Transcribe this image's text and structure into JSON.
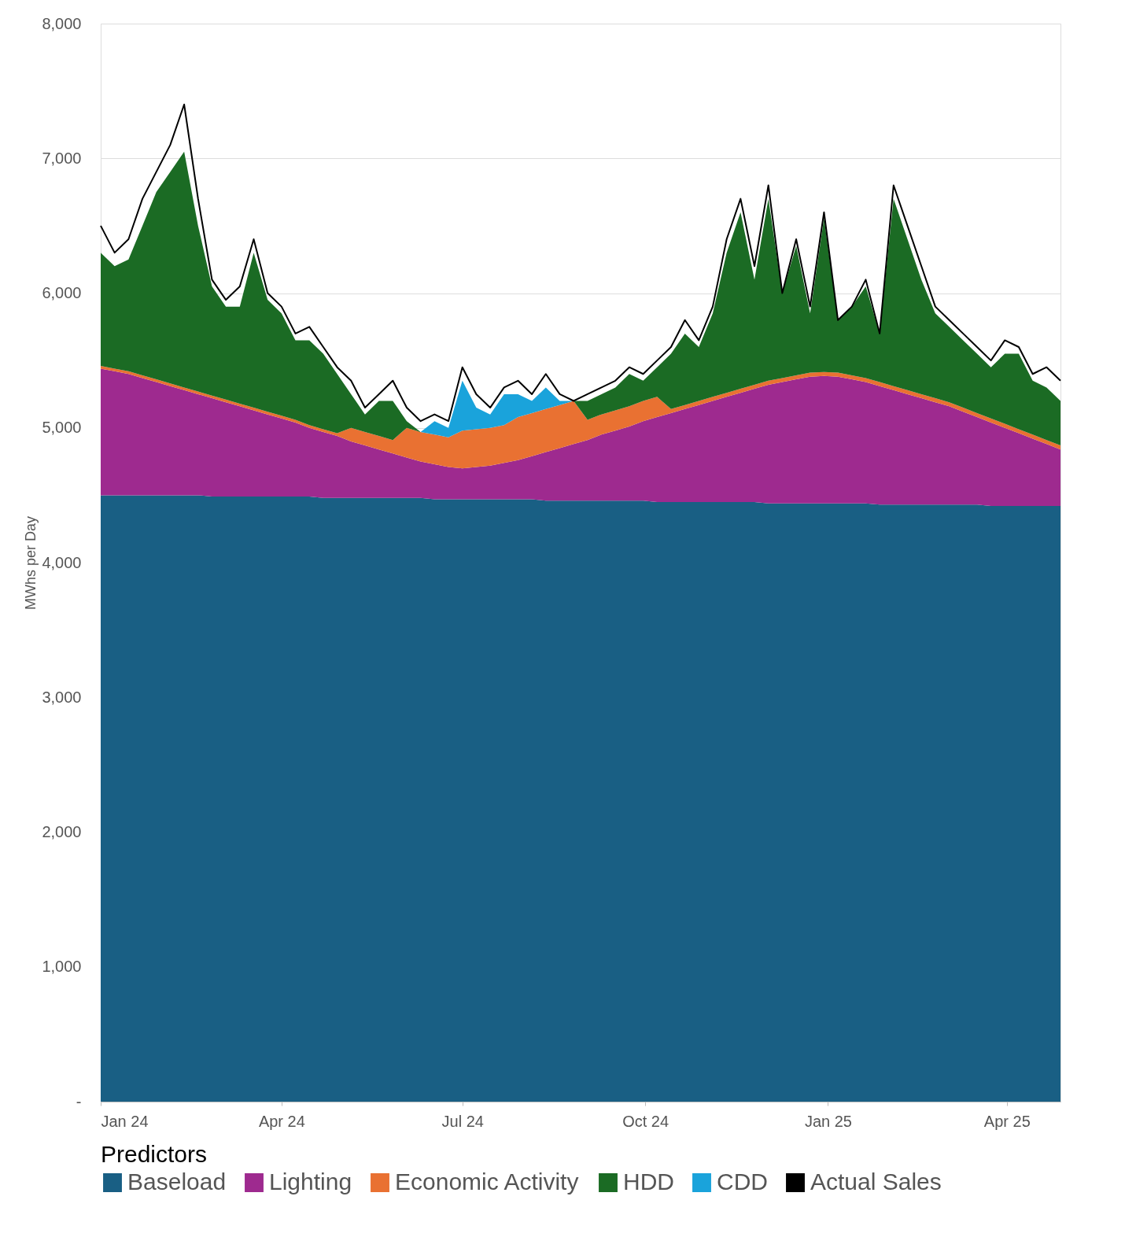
{
  "chart_data": {
    "type": "area",
    "stacked": true,
    "ylabel": "MWhs per Day",
    "legend_title": "Predictors",
    "legend": "bottom",
    "grid": "y",
    "x": [
      "2024-01-01",
      "2024-01-08",
      "2024-01-15",
      "2024-01-22",
      "2024-01-29",
      "2024-02-05",
      "2024-02-12",
      "2024-02-19",
      "2024-02-26",
      "2024-03-04",
      "2024-03-11",
      "2024-03-18",
      "2024-03-25",
      "2024-04-01",
      "2024-04-08",
      "2024-04-15",
      "2024-04-22",
      "2024-04-29",
      "2024-05-06",
      "2024-05-13",
      "2024-05-20",
      "2024-05-27",
      "2024-06-03",
      "2024-06-10",
      "2024-06-17",
      "2024-06-24",
      "2024-07-01",
      "2024-07-08",
      "2024-07-15",
      "2024-07-22",
      "2024-07-29",
      "2024-08-05",
      "2024-08-12",
      "2024-08-19",
      "2024-08-26",
      "2024-09-02",
      "2024-09-09",
      "2024-09-16",
      "2024-09-23",
      "2024-09-30",
      "2024-10-07",
      "2024-10-14",
      "2024-10-21",
      "2024-10-28",
      "2024-11-04",
      "2024-11-11",
      "2024-11-18",
      "2024-11-25",
      "2024-12-02",
      "2024-12-09",
      "2024-12-16",
      "2024-12-23",
      "2024-12-30",
      "2025-01-06",
      "2025-01-13",
      "2025-01-20",
      "2025-01-27",
      "2025-02-03",
      "2025-02-10",
      "2025-02-17",
      "2025-02-24",
      "2025-03-03",
      "2025-03-10",
      "2025-03-17",
      "2025-03-24",
      "2025-03-31",
      "2025-04-07",
      "2025-04-14",
      "2025-04-21",
      "2025-04-28"
    ],
    "xlim": [
      "2024-01-01",
      "2025-04-28"
    ],
    "xticks": [
      {
        "value": "2024-01-01",
        "label": "Jan 24"
      },
      {
        "value": "2024-04-01",
        "label": "Apr 24"
      },
      {
        "value": "2024-07-01",
        "label": "Jul 24"
      },
      {
        "value": "2024-10-01",
        "label": "Oct 24"
      },
      {
        "value": "2025-01-01",
        "label": "Jan 25"
      },
      {
        "value": "2025-04-01",
        "label": "Apr 25"
      }
    ],
    "ylim": [
      0,
      8000
    ],
    "yticks": [
      {
        "value": 0,
        "label": "-"
      },
      {
        "value": 1000,
        "label": "1,000"
      },
      {
        "value": 2000,
        "label": "2,000"
      },
      {
        "value": 3000,
        "label": "3,000"
      },
      {
        "value": 4000,
        "label": "4,000"
      },
      {
        "value": 5000,
        "label": "5,000"
      },
      {
        "value": 6000,
        "label": "6,000"
      },
      {
        "value": 7000,
        "label": "7,000"
      },
      {
        "value": 8000,
        "label": "8,000"
      }
    ],
    "series": [
      {
        "name": "Baseload",
        "color": "#195f84",
        "values": [
          4500,
          4500,
          4500,
          4500,
          4500,
          4500,
          4500,
          4500,
          4490,
          4490,
          4490,
          4490,
          4490,
          4490,
          4490,
          4490,
          4480,
          4480,
          4480,
          4480,
          4480,
          4480,
          4480,
          4480,
          4470,
          4470,
          4470,
          4470,
          4470,
          4470,
          4470,
          4470,
          4460,
          4460,
          4460,
          4460,
          4460,
          4460,
          4460,
          4460,
          4450,
          4450,
          4450,
          4450,
          4450,
          4450,
          4450,
          4450,
          4440,
          4440,
          4440,
          4440,
          4440,
          4440,
          4440,
          4440,
          4430,
          4430,
          4430,
          4430,
          4430,
          4430,
          4430,
          4430,
          4420,
          4420,
          4420,
          4420,
          4420,
          4420
        ]
      },
      {
        "name": "Lighting",
        "color": "#9e2a8f",
        "values": [
          940,
          920,
          900,
          870,
          840,
          810,
          780,
          750,
          730,
          700,
          670,
          640,
          610,
          580,
          550,
          510,
          490,
          460,
          420,
          390,
          360,
          330,
          300,
          270,
          260,
          240,
          230,
          240,
          250,
          270,
          290,
          320,
          360,
          390,
          420,
          450,
          490,
          520,
          550,
          590,
          630,
          660,
          690,
          720,
          750,
          780,
          810,
          840,
          880,
          900,
          920,
          940,
          945,
          940,
          920,
          900,
          880,
          850,
          820,
          790,
          760,
          730,
          690,
          650,
          620,
          580,
          540,
          500,
          460,
          420
        ]
      },
      {
        "name": "Economic Activity",
        "color": "#e97132",
        "values": [
          20,
          20,
          20,
          20,
          20,
          20,
          20,
          20,
          20,
          20,
          20,
          20,
          20,
          20,
          20,
          20,
          20,
          20,
          100,
          100,
          100,
          100,
          220,
          220,
          220,
          220,
          280,
          280,
          280,
          280,
          320,
          320,
          320,
          320,
          320,
          150,
          150,
          150,
          150,
          150,
          150,
          30,
          30,
          30,
          30,
          30,
          30,
          30,
          30,
          30,
          30,
          30,
          30,
          30,
          30,
          30,
          30,
          30,
          30,
          30,
          30,
          30,
          30,
          30,
          30,
          30,
          30,
          30,
          30,
          30
        ]
      },
      {
        "name": "HDD",
        "color": "#1b6b24",
        "values": [
          840,
          760,
          830,
          1110,
          1390,
          1570,
          1750,
          1230,
          810,
          690,
          720,
          1150,
          830,
          760,
          590,
          630,
          560,
          440,
          250,
          130,
          260,
          290,
          50,
          0,
          0,
          0,
          0,
          0,
          0,
          0,
          0,
          0,
          0,
          0,
          0,
          140,
          150,
          170,
          240,
          150,
          220,
          410,
          530,
          400,
          620,
          1040,
          1310,
          780,
          1350,
          630,
          960,
          440,
          1140,
          390,
          510,
          680,
          360,
          1390,
          1120,
          850,
          630,
          560,
          500,
          440,
          380,
          520,
          560,
          400,
          390,
          330
        ]
      },
      {
        "name": "CDD",
        "color": "#1aa3db",
        "values": [
          0,
          0,
          0,
          0,
          0,
          0,
          0,
          0,
          0,
          0,
          0,
          0,
          0,
          0,
          0,
          0,
          0,
          0,
          0,
          0,
          0,
          0,
          0,
          0,
          100,
          70,
          370,
          160,
          100,
          230,
          170,
          90,
          160,
          30,
          0,
          0,
          0,
          0,
          0,
          0,
          0,
          0,
          0,
          0,
          0,
          0,
          0,
          0,
          0,
          0,
          0,
          0,
          0,
          0,
          0,
          0,
          0,
          0,
          0,
          0,
          0,
          0,
          0,
          0,
          0,
          0,
          0,
          0,
          0,
          0
        ]
      },
      {
        "name": "Actual Sales",
        "type": "line",
        "color": "#000000",
        "values": [
          6500,
          6300,
          6400,
          6700,
          6900,
          7100,
          7400,
          6700,
          6100,
          5950,
          6050,
          6400,
          6000,
          5900,
          5700,
          5750,
          5600,
          5450,
          5350,
          5150,
          5250,
          5350,
          5150,
          5050,
          5100,
          5050,
          5450,
          5250,
          5150,
          5300,
          5350,
          5250,
          5400,
          5250,
          5200,
          5250,
          5300,
          5350,
          5450,
          5400,
          5500,
          5600,
          5800,
          5650,
          5900,
          6400,
          6700,
          6200,
          6800,
          6000,
          6400,
          5900,
          6600,
          5800,
          5900,
          6100,
          5700,
          6800,
          6500,
          6200,
          5900,
          5800,
          5700,
          5600,
          5500,
          5650,
          5600,
          5400,
          5450,
          5350
        ]
      }
    ]
  }
}
